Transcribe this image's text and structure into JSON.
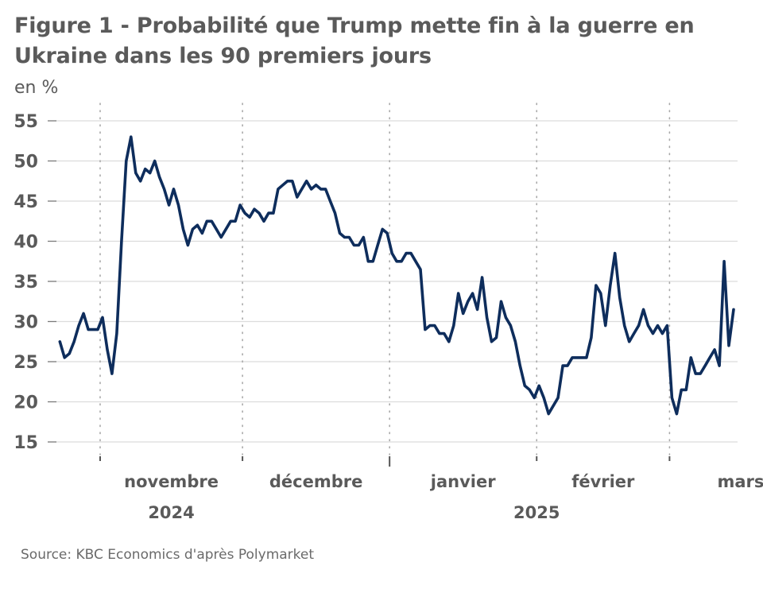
{
  "chart_data": {
    "type": "line",
    "title": "Figure 1 - Probabilité que Trump mette fin à la guerre en Ukraine dans les 90 premiers jours",
    "ylabel": "en %",
    "xlabel": "",
    "source": "Source: KBC Economics d'après Polymarket",
    "ylim": [
      15,
      55
    ],
    "yticks": [
      55,
      50,
      45,
      40,
      35,
      30,
      25,
      20,
      15
    ],
    "x_unit": "days since 2024-11-01",
    "xlim": [
      -10,
      145
    ],
    "grid": true,
    "legend": "none",
    "month_boundaries": [
      {
        "day": 0,
        "label": "novembre",
        "year_boundary": false
      },
      {
        "day": 30,
        "label": "décembre",
        "year_boundary": false
      },
      {
        "day": 61,
        "label": "janvier",
        "year_boundary": true
      },
      {
        "day": 92,
        "label": "février",
        "year_boundary": false
      },
      {
        "day": 120,
        "label": "mars",
        "year_boundary": false
      }
    ],
    "month_labels": [
      {
        "label": "novembre",
        "center_day": 15
      },
      {
        "label": "décembre",
        "center_day": 45.5
      },
      {
        "label": "janvier",
        "center_day": 76.5
      },
      {
        "label": "février",
        "center_day": 106
      },
      {
        "label": "mars",
        "center_day": 135
      }
    ],
    "year_labels": [
      {
        "label": "2024",
        "center_day": 15
      },
      {
        "label": "2025",
        "center_day": 92
      }
    ],
    "series": [
      {
        "name": "Probabilité",
        "color": "#0e2d5c",
        "x": [
          -8.5,
          -7.5,
          -6.5,
          -5.5,
          -4.5,
          -3.5,
          -2.5,
          -1.5,
          -0.5,
          0.5,
          1.5,
          2.5,
          3.5,
          4.5,
          5.5,
          6.5,
          7.5,
          8.5,
          9.5,
          10.5,
          11.5,
          12.5,
          13.5,
          14.5,
          15.5,
          16.5,
          17.5,
          18.5,
          19.5,
          20.5,
          21.5,
          22.5,
          23.5,
          24.5,
          25.5,
          26.5,
          27.5,
          28.5,
          29.5,
          30.5,
          31.5,
          32.5,
          33.5,
          34.5,
          35.5,
          36.5,
          37.5,
          38.5,
          39.5,
          40.5,
          41.5,
          42.5,
          43.5,
          44.5,
          45.5,
          46.5,
          47.5,
          48.5,
          49.5,
          50.5,
          51.5,
          52.5,
          53.5,
          54.5,
          55.5,
          56.5,
          57.5,
          58.5,
          59.5,
          60.5,
          61.5,
          62.5,
          63.5,
          64.5,
          65.5,
          66.5,
          67.5,
          68.5,
          69.5,
          70.5,
          71.5,
          72.5,
          73.5,
          74.5,
          75.5,
          76.5,
          77.5,
          78.5,
          79.5,
          80.5,
          81.5,
          82.5,
          83.5,
          84.5,
          85.5,
          86.5,
          87.5,
          88.5,
          89.5,
          90.5,
          91.5,
          92.5,
          93.5,
          94.5,
          95.5,
          96.5,
          97.5,
          98.5,
          99.5,
          100.5,
          101.5,
          102.5,
          103.5,
          104.5,
          105.5,
          106.5,
          107.5,
          108.5,
          109.5,
          110.5,
          111.5,
          112.5,
          113.5,
          114.5,
          115.5,
          116.5,
          117.5,
          118.5,
          119.5,
          120.5,
          121.5,
          122.5,
          123.5,
          124.5,
          125.5,
          126.5,
          127.5,
          128.5,
          129.5,
          130.5,
          131.5,
          132.5,
          133.5
        ],
        "values": [
          27.5,
          25.5,
          26,
          27.5,
          29.5,
          31,
          29,
          29,
          29,
          30.5,
          26.5,
          23.5,
          28.5,
          40,
          50,
          53,
          48.5,
          47.5,
          49,
          48.5,
          50,
          48,
          46.5,
          44.5,
          46.5,
          44.5,
          41.5,
          39.5,
          41.5,
          42,
          41,
          42.5,
          42.5,
          41.5,
          40.5,
          41.5,
          42.5,
          42.5,
          44.5,
          43.5,
          43,
          44,
          43.5,
          42.5,
          43.5,
          43.5,
          46.5,
          47,
          47.5,
          47.5,
          45.5,
          46.5,
          47.5,
          46.5,
          47,
          46.5,
          46.5,
          45,
          43.5,
          41,
          40.5,
          40.5,
          39.5,
          39.5,
          40.5,
          37.5,
          37.5,
          39.5,
          41.5,
          41,
          38.5,
          37.5,
          37.5,
          38.5,
          38.5,
          37.5,
          36.5,
          29,
          29.5,
          29.5,
          28.5,
          28.5,
          27.5,
          29.5,
          33.5,
          31,
          32.5,
          33.5,
          31.5,
          35.5,
          30.5,
          27.5,
          28,
          32.5,
          30.5,
          29.5,
          27.5,
          24.5,
          22,
          21.5,
          20.5,
          22,
          20.5,
          18.5,
          19.5,
          20.5,
          24.5,
          24.5,
          25.5,
          25.5,
          25.5,
          25.5,
          28,
          34.5,
          33.5,
          29.5,
          34.5,
          38.5,
          33,
          29.5,
          27.5,
          28.5,
          29.5,
          31.5,
          29.5,
          28.5,
          29.5,
          28.5,
          29.5,
          20.5,
          18.5,
          21.5,
          21.5,
          25.5,
          23.5,
          23.5,
          24.5,
          25.5,
          26.5,
          24.5,
          37.5,
          27,
          31.5
        ]
      }
    ]
  }
}
